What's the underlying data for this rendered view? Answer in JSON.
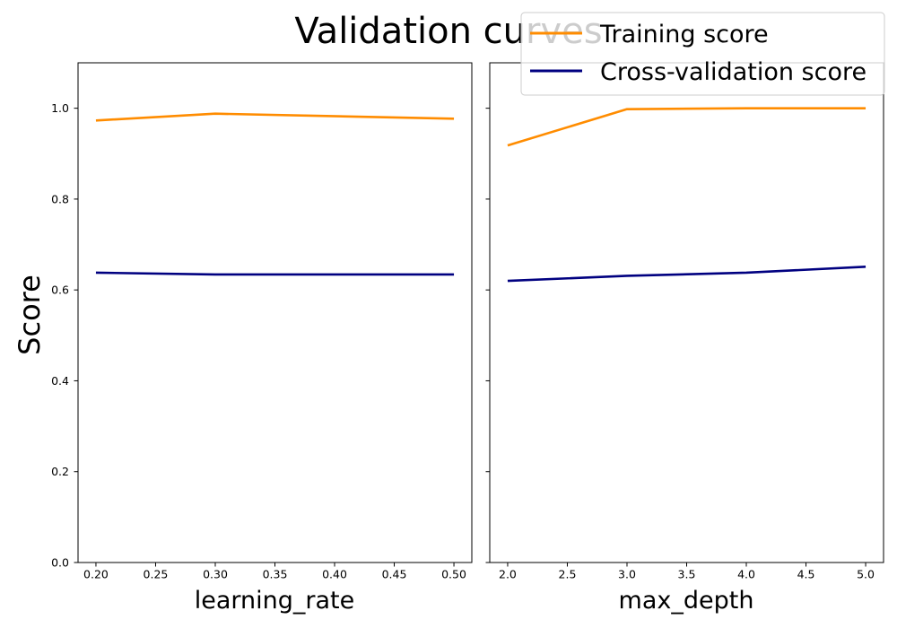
{
  "chart_data": {
    "type": "line",
    "title": "Validation curves",
    "ylabel": "Score",
    "ylim": [
      0,
      1.1
    ],
    "yticks": [
      0.0,
      0.2,
      0.4,
      0.6,
      0.8,
      1.0
    ],
    "ytick_labels": [
      "0.0",
      "0.2",
      "0.4",
      "0.6",
      "0.8",
      "1.0"
    ],
    "sharey": true,
    "legend": {
      "location": "top-right",
      "entries": [
        {
          "name": "Training score",
          "color": "#ff8c00"
        },
        {
          "name": "Cross-validation score",
          "color": "#000080"
        }
      ]
    },
    "subplots": [
      {
        "xlabel": "learning_rate",
        "xlim": [
          0.185,
          0.515
        ],
        "xticks": [
          0.2,
          0.25,
          0.3,
          0.35,
          0.4,
          0.45,
          0.5
        ],
        "xtick_labels": [
          "0.20",
          "0.25",
          "0.30",
          "0.35",
          "0.40",
          "0.45",
          "0.50"
        ],
        "x": [
          0.2,
          0.3,
          0.5
        ],
        "series": [
          {
            "name": "Training score",
            "color": "#ff8c00",
            "values": [
              0.973,
              0.988,
              0.977
            ]
          },
          {
            "name": "Cross-validation score",
            "color": "#000080",
            "values": [
              0.638,
              0.634,
              0.634
            ]
          }
        ]
      },
      {
        "xlabel": "max_depth",
        "xlim": [
          1.85,
          5.15
        ],
        "xticks": [
          2.0,
          2.5,
          3.0,
          3.5,
          4.0,
          4.5,
          5.0
        ],
        "xtick_labels": [
          "2.0",
          "2.5",
          "3.0",
          "3.5",
          "4.0",
          "4.5",
          "5.0"
        ],
        "x": [
          2,
          3,
          4,
          5
        ],
        "series": [
          {
            "name": "Training score",
            "color": "#ff8c00",
            "values": [
              0.918,
              0.998,
              1.0,
              1.0
            ]
          },
          {
            "name": "Cross-validation score",
            "color": "#000080",
            "values": [
              0.62,
              0.631,
              0.638,
              0.651
            ]
          }
        ]
      }
    ]
  }
}
